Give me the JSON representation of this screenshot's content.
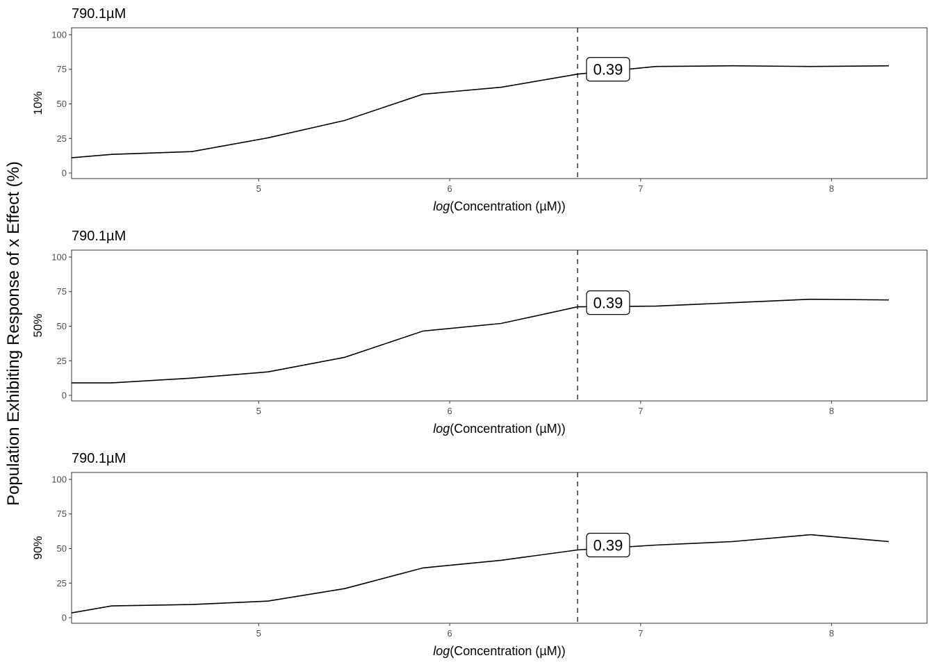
{
  "figure": {
    "ylabel": "Population Exhibiting Response of x Effect (%)"
  },
  "chart_data": [
    {
      "type": "line",
      "title": "790.1µM",
      "ylabel": "10%",
      "xlabel_prefix": "log",
      "xlabel_inner": "Concentration (µM)",
      "xlim": [
        4.02,
        8.5
      ],
      "ylim": [
        -4,
        105
      ],
      "xticks": [
        5,
        6,
        7,
        8
      ],
      "yticks": [
        0,
        25,
        50,
        75,
        100
      ],
      "grid": false,
      "x": [
        4.02,
        4.23,
        4.65,
        5.05,
        5.45,
        5.86,
        6.27,
        6.67,
        7.08,
        7.48,
        7.89,
        8.3
      ],
      "y": [
        11,
        13.5,
        15.5,
        25.5,
        38,
        57,
        62,
        71.5,
        77,
        77.5,
        77,
        77.5
      ],
      "vline_x": 6.67,
      "annotation": "0.39",
      "annotation_y": 75
    },
    {
      "type": "line",
      "title": "790.1µM",
      "ylabel": "50%",
      "xlabel_prefix": "log",
      "xlabel_inner": "Concentration (µM)",
      "xlim": [
        4.02,
        8.5
      ],
      "ylim": [
        -4,
        105
      ],
      "xticks": [
        5,
        6,
        7,
        8
      ],
      "yticks": [
        0,
        25,
        50,
        75,
        100
      ],
      "grid": false,
      "x": [
        4.02,
        4.23,
        4.65,
        5.05,
        5.45,
        5.86,
        6.27,
        6.67,
        7.08,
        7.48,
        7.89,
        8.3
      ],
      "y": [
        9,
        9,
        12.5,
        17,
        27.5,
        46.5,
        52,
        64,
        64.5,
        67,
        69.5,
        69
      ],
      "vline_x": 6.67,
      "annotation": "0.39",
      "annotation_y": 67
    },
    {
      "type": "line",
      "title": "790.1µM",
      "ylabel": "90%",
      "xlabel_prefix": "log",
      "xlabel_inner": "Concentration (µM)",
      "xlim": [
        4.02,
        8.5
      ],
      "ylim": [
        -4,
        105
      ],
      "xticks": [
        5,
        6,
        7,
        8
      ],
      "yticks": [
        0,
        25,
        50,
        75,
        100
      ],
      "grid": false,
      "x": [
        4.02,
        4.23,
        4.65,
        5.05,
        5.45,
        5.86,
        6.27,
        6.67,
        7.08,
        7.48,
        7.89,
        8.3
      ],
      "y": [
        3.5,
        8.5,
        9.5,
        12,
        21,
        36,
        41.5,
        49,
        52.5,
        55,
        60,
        55
      ],
      "vline_x": 6.67,
      "annotation": "0.39",
      "annotation_y": 52.5
    }
  ]
}
